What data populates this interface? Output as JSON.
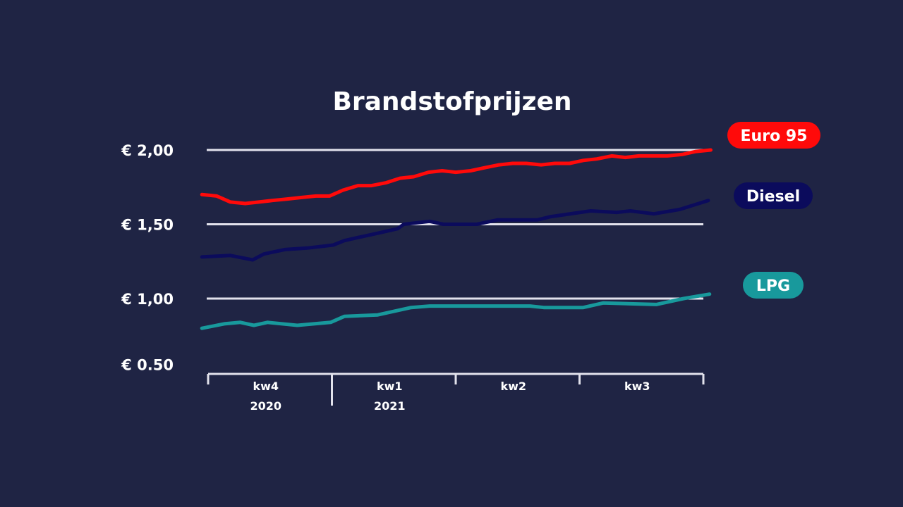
{
  "chart_data": {
    "type": "line",
    "title": "Brandstofprijzen",
    "xlabel": "",
    "ylabel": "",
    "ylim": [
      0.5,
      2.0
    ],
    "xlim": [
      -0.05,
      4.06
    ],
    "grid": true,
    "legend": "right",
    "y_ticks": [
      {
        "value": 2.0,
        "label": "€ 2,00",
        "gridline": true
      },
      {
        "value": 1.5,
        "label": "€ 1,50",
        "gridline": true
      },
      {
        "value": 1.0,
        "label": "€ 1,00",
        "gridline": true
      },
      {
        "value": 0.5,
        "label": "€ 0.50",
        "gridline": false
      }
    ],
    "x_ticks": [
      0,
      1,
      2,
      3,
      4
    ],
    "x_categories": [
      {
        "label": "kw4",
        "year": "2020",
        "center": 0.5
      },
      {
        "label": "kw1",
        "year": "2021",
        "center": 1.5
      },
      {
        "label": "kw2",
        "year": "",
        "center": 2.5
      },
      {
        "label": "kw3",
        "year": "",
        "center": 3.5
      }
    ],
    "series": [
      {
        "name": "Euro 95",
        "color": "#ff0a0a",
        "x": [
          -0.05,
          0.07,
          0.18,
          0.3,
          0.41,
          0.52,
          0.64,
          0.75,
          0.87,
          0.98,
          1.09,
          1.21,
          1.32,
          1.44,
          1.55,
          1.66,
          1.78,
          1.89,
          2.0,
          2.12,
          2.23,
          2.35,
          2.46,
          2.57,
          2.69,
          2.8,
          2.92,
          3.03,
          3.14,
          3.26,
          3.37,
          3.48,
          3.6,
          3.71,
          3.83,
          3.94,
          4.06
        ],
        "y": [
          1.7,
          1.69,
          1.65,
          1.64,
          1.65,
          1.66,
          1.67,
          1.68,
          1.69,
          1.69,
          1.73,
          1.76,
          1.76,
          1.78,
          1.81,
          1.82,
          1.85,
          1.86,
          1.85,
          1.86,
          1.88,
          1.9,
          1.91,
          1.91,
          1.9,
          1.91,
          1.91,
          1.93,
          1.94,
          1.96,
          1.95,
          1.96,
          1.96,
          1.96,
          1.97,
          1.99,
          2.0
        ]
      },
      {
        "name": "Diesel",
        "color": "#0b0b5c",
        "x": [
          -0.05,
          0.18,
          0.36,
          0.45,
          0.62,
          0.8,
          1.01,
          1.1,
          1.26,
          1.37,
          1.53,
          1.58,
          1.79,
          1.9,
          2.17,
          2.34,
          2.66,
          2.76,
          3.09,
          3.3,
          3.41,
          3.6,
          3.81,
          4.04
        ],
        "y": [
          1.28,
          1.29,
          1.26,
          1.3,
          1.33,
          1.34,
          1.36,
          1.39,
          1.42,
          1.44,
          1.47,
          1.5,
          1.52,
          1.5,
          1.5,
          1.53,
          1.53,
          1.55,
          1.59,
          1.58,
          1.59,
          1.57,
          1.6,
          1.66
        ]
      },
      {
        "name": "LPG",
        "color": "#18999c",
        "x": [
          -0.05,
          0.13,
          0.26,
          0.37,
          0.48,
          0.72,
          0.99,
          1.1,
          1.37,
          1.64,
          1.79,
          2.6,
          2.71,
          3.03,
          3.19,
          3.62,
          3.84,
          4.05
        ],
        "y": [
          0.8,
          0.83,
          0.84,
          0.82,
          0.84,
          0.82,
          0.84,
          0.88,
          0.89,
          0.94,
          0.95,
          0.95,
          0.94,
          0.94,
          0.97,
          0.96,
          1.0,
          1.03
        ]
      }
    ]
  }
}
